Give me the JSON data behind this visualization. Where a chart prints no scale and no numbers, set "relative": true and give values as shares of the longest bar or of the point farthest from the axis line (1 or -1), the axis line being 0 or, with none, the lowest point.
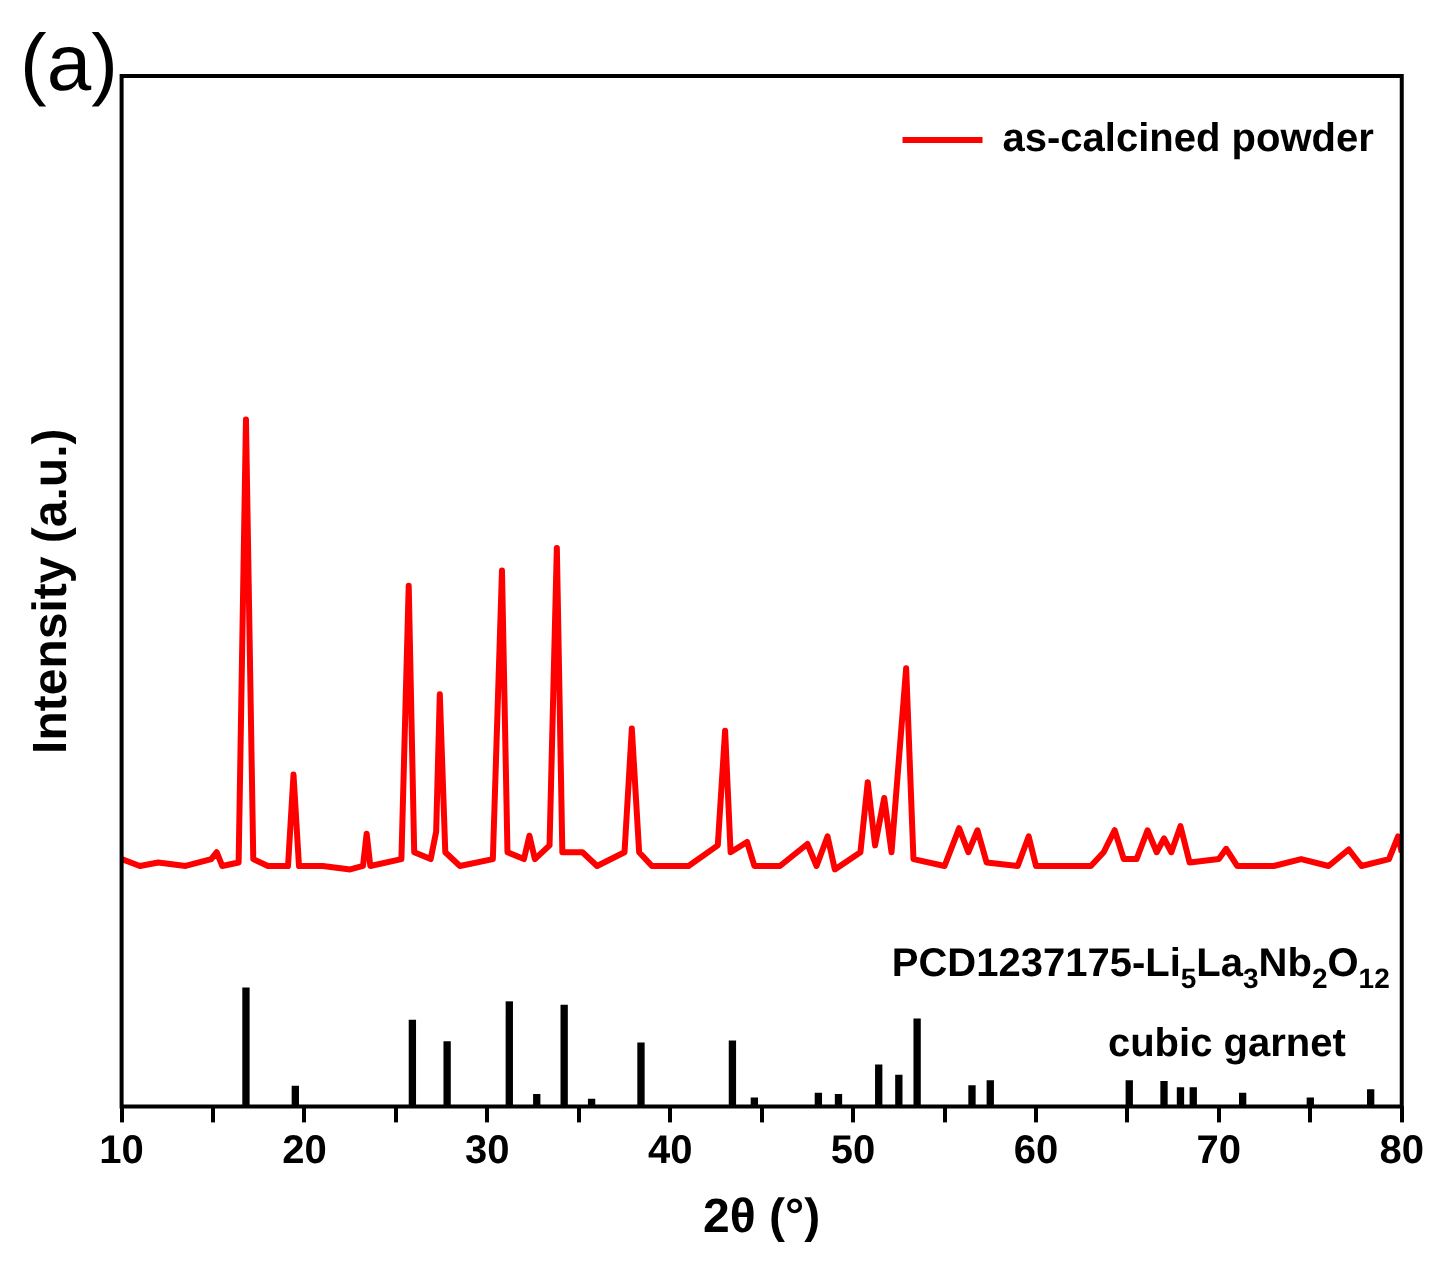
{
  "chart_data": {
    "type": "line",
    "relative": true,
    "xlabel": "2θ (°)",
    "ylabel": "Intensity (a.u.)",
    "xlim": [
      10,
      80
    ],
    "xticks": [
      10,
      {
        "value": 15,
        "label": null
      },
      20,
      {
        "value": 25,
        "label": null
      },
      30,
      {
        "value": 35,
        "label": null
      },
      40,
      {
        "value": 45,
        "label": null
      },
      50,
      {
        "value": 55,
        "label": null
      },
      60,
      {
        "value": 65,
        "label": null
      },
      70,
      {
        "value": 75,
        "label": null
      },
      80
    ],
    "legend": "top right",
    "annotations": [
      "(a)",
      "PCD1237175-Li$_{5}$La$_{3}$Nb$_{2}$O$_{12}$",
      "cubic garnet"
    ],
    "series": [
      {
        "name": "as-calcined powder",
        "color": "#ff0000",
        "x": [
          10,
          11,
          12,
          13.5,
          14.9,
          15.2,
          15.5,
          16.4,
          16.8,
          17.2,
          18,
          19.1,
          19.4,
          19.7,
          21,
          22.5,
          23.2,
          23.4,
          23.6,
          25.3,
          25.7,
          26.0,
          26.9,
          27.2,
          27.4,
          27.7,
          28.5,
          30.3,
          30.8,
          31.1,
          32.0,
          32.3,
          32.6,
          33.4,
          33.8,
          34.1,
          35.2,
          36,
          37.5,
          37.9,
          38.3,
          39,
          41,
          42.6,
          43.0,
          43.3,
          44.2,
          44.6,
          46,
          47.5,
          48,
          48.6,
          49,
          50.4,
          50.8,
          51.2,
          51.7,
          52.1,
          52.9,
          53.3,
          55,
          55.8,
          56.3,
          56.8,
          57.3,
          59,
          59.6,
          60,
          63,
          63.7,
          64.3,
          64.8,
          65.5,
          66.1,
          66.6,
          67.0,
          67.4,
          67.9,
          68.4,
          70,
          70.4,
          71,
          73,
          74.5,
          76,
          77.1,
          77.8,
          79.3,
          79.8,
          80
        ],
        "values": [
          0.36,
          0.35,
          0.355,
          0.35,
          0.36,
          0.37,
          0.35,
          0.355,
          1.0,
          0.36,
          0.35,
          0.35,
          0.483,
          0.35,
          0.35,
          0.345,
          0.35,
          0.397,
          0.35,
          0.36,
          0.758,
          0.37,
          0.36,
          0.4,
          0.6,
          0.37,
          0.35,
          0.36,
          0.78,
          0.37,
          0.36,
          0.394,
          0.36,
          0.38,
          0.813,
          0.37,
          0.37,
          0.35,
          0.37,
          0.55,
          0.37,
          0.35,
          0.35,
          0.38,
          0.547,
          0.37,
          0.385,
          0.35,
          0.35,
          0.382,
          0.35,
          0.393,
          0.345,
          0.37,
          0.472,
          0.38,
          0.449,
          0.37,
          0.638,
          0.36,
          0.35,
          0.405,
          0.37,
          0.402,
          0.355,
          0.35,
          0.393,
          0.35,
          0.35,
          0.37,
          0.402,
          0.36,
          0.36,
          0.402,
          0.37,
          0.39,
          0.37,
          0.408,
          0.355,
          0.36,
          0.375,
          0.35,
          0.35,
          0.36,
          0.35,
          0.374,
          0.35,
          0.36,
          0.393,
          0.37
        ]
      },
      {
        "type": "bar",
        "color": "#000000",
        "x": [
          16.8,
          19.5,
          25.9,
          27.8,
          31.2,
          32.7,
          34.2,
          35.7,
          38.4,
          43.4,
          44.6,
          48.1,
          49.2,
          51.4,
          52.5,
          53.5,
          56.5,
          57.5,
          65.1,
          67.0,
          67.9,
          68.6,
          71.3,
          75.0,
          78.3
        ],
        "values": [
          0.172,
          0.029,
          0.125,
          0.094,
          0.152,
          0.017,
          0.147,
          0.01,
          0.092,
          0.095,
          0.012,
          0.019,
          0.017,
          0.06,
          0.045,
          0.127,
          0.03,
          0.037,
          0.037,
          0.036,
          0.027,
          0.027,
          0.019,
          0.012,
          0.024
        ]
      }
    ]
  }
}
